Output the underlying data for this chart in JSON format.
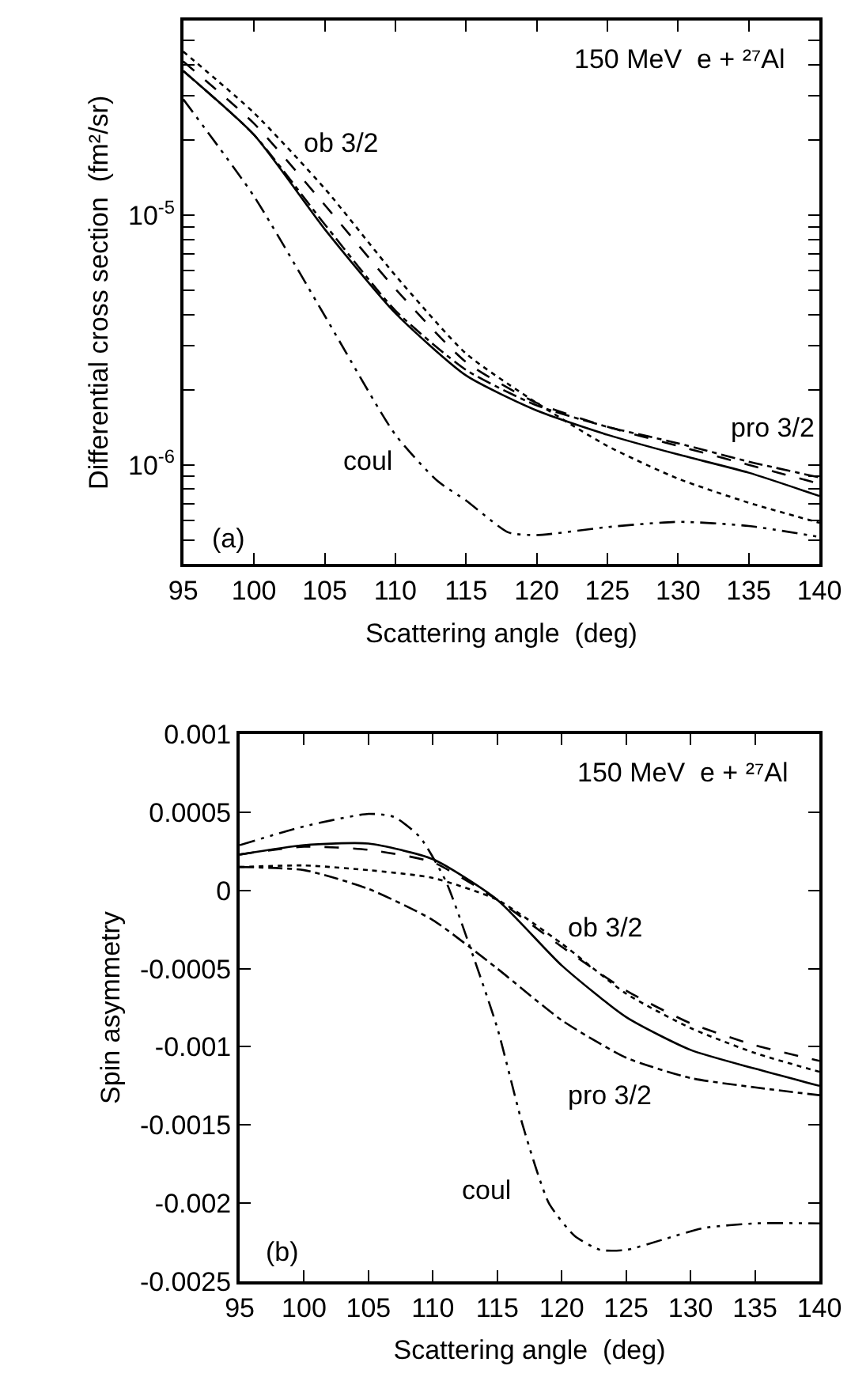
{
  "chart_data": [
    {
      "type": "line",
      "title": "150 MeV  e + ²⁷Al",
      "xlabel": "Scattering angle  (deg)",
      "ylabel": "Differential cross section  (fm²/sr)",
      "log": "y",
      "x": [
        95,
        100,
        105,
        110,
        115,
        120,
        125,
        130,
        135,
        140
      ],
      "series": [
        {
          "color": "#000000",
          "line_style": "solid",
          "values": [
            3.78e-05,
            2.1e-05,
            8.8e-06,
            4.05e-06,
            2.28e-06,
            1.65e-06,
            1.32e-06,
            1.1e-06,
            9.3e-07,
            7.5e-07
          ]
        },
        {
          "color": "#000000",
          "line_style": "dashed",
          "values": [
            4.13e-05,
            2.33e-05,
            1.1e-05,
            5.07e-06,
            2.58e-06,
            1.77e-06,
            1.42e-06,
            1.19e-06,
            1e-06,
            8.4e-07
          ]
        },
        {
          "color": "#000000",
          "line_style": "dotted",
          "values": [
            4.52e-05,
            2.57e-05,
            1.28e-05,
            5.74e-06,
            2.79e-06,
            1.77e-06,
            1.19e-06,
            8.8e-07,
            7.05e-07,
            5.86e-07
          ]
        },
        {
          "color": "#000000",
          "line_style": "dashdot",
          "values": [
            3.78e-05,
            2.1e-05,
            9.2e-06,
            4.15e-06,
            2.4e-06,
            1.73e-06,
            1.42e-06,
            1.22e-06,
            1.03e-06,
            8.9e-07
          ]
        },
        {
          "color": "#000000",
          "line_style": "dashdotdot",
          "x": [
            95,
            100,
            105,
            110,
            113,
            115,
            118,
            120,
            125,
            130,
            135,
            140
          ],
          "values": [
            2.91e-05,
            1.19e-05,
            3.96e-06,
            1.32e-06,
            8.6e-07,
            7.2e-07,
            5.36e-07,
            5.23e-07,
            5.63e-07,
            5.91e-07,
            5.69e-07,
            5.14e-07
          ]
        }
      ],
      "xlim": [
        95,
        140
      ],
      "xticks": [
        95,
        100,
        105,
        110,
        115,
        120,
        125,
        130,
        135,
        140
      ],
      "ylim": [
        4e-07,
        6e-05
      ],
      "yticks": [
        {
          "value": 5e-07,
          "label": null
        },
        {
          "value": 6e-07,
          "label": null
        },
        {
          "value": 7e-07,
          "label": null
        },
        {
          "value": 8e-07,
          "label": null
        },
        {
          "value": 9e-07,
          "label": null
        },
        {
          "value": 1e-06,
          "label": "10$^{-6}$"
        },
        {
          "value": 2e-06,
          "label": null
        },
        {
          "value": 3e-06,
          "label": null
        },
        {
          "value": 4e-06,
          "label": null
        },
        {
          "value": 5e-06,
          "label": null
        },
        {
          "value": 6e-06,
          "label": null
        },
        {
          "value": 7e-06,
          "label": null
        },
        {
          "value": 8e-06,
          "label": null
        },
        {
          "value": 9e-06,
          "label": null
        },
        {
          "value": 1e-05,
          "label": "10$^{-5}$"
        },
        {
          "value": 2e-05,
          "label": null
        },
        {
          "value": 3e-05,
          "label": null
        },
        {
          "value": 4e-05,
          "label": null
        },
        {
          "value": 5e-05,
          "label": null
        }
      ],
      "annotations": [
        "ob 3/2",
        "pro 3/2",
        "coul",
        "(a)"
      ]
    },
    {
      "type": "line",
      "title": "150 MeV  e + ²⁷Al",
      "xlabel": "Scattering angle  (deg)",
      "ylabel": "Spin asymmetry",
      "x": [
        95,
        100,
        105,
        110,
        115,
        120,
        125,
        130,
        135,
        140
      ],
      "series": [
        {
          "color": "#000000",
          "line_style": "solid",
          "values": [
            0.00023,
            0.00029,
            0.0003,
            0.0002,
            -6e-05,
            -0.00048,
            -0.00081,
            -0.00102,
            -0.00114,
            -0.00125
          ]
        },
        {
          "color": "#000000",
          "line_style": "dashed",
          "values": [
            0.00023,
            0.00028,
            0.00026,
            0.00018,
            -6e-05,
            -0.00036,
            -0.00064,
            -0.00085,
            -0.00099,
            -0.00109
          ]
        },
        {
          "color": "#000000",
          "line_style": "dotted",
          "values": [
            0.00015,
            0.00016,
            0.00013,
            8e-05,
            -6e-05,
            -0.00034,
            -0.00066,
            -0.00088,
            -0.00104,
            -0.00116
          ]
        },
        {
          "color": "#000000",
          "line_style": "dashdot",
          "values": [
            0.00015,
            0.00013,
            1e-05,
            -0.00019,
            -0.0005,
            -0.00083,
            -0.00107,
            -0.0012,
            -0.00126,
            -0.00131
          ]
        },
        {
          "color": "#000000",
          "line_style": "dashdotdot",
          "x": [
            95,
            100,
            105,
            107,
            109,
            111,
            113,
            115,
            117,
            119,
            121,
            123,
            125,
            128,
            131,
            135,
            140
          ],
          "values": [
            0.00029,
            0.00041,
            0.00049,
            0.00047,
            0.00034,
            6e-05,
            -0.00039,
            -0.00088,
            -0.00151,
            -0.002,
            -0.00221,
            -0.0023,
            -0.0023,
            -0.00223,
            -0.00216,
            -0.00213,
            -0.00213
          ]
        }
      ],
      "xlim": [
        95,
        140
      ],
      "xticks": [
        95,
        100,
        105,
        110,
        115,
        120,
        125,
        130,
        135,
        140
      ],
      "ylim": [
        -0.0025,
        0.001
      ],
      "yticks": [
        -0.0025,
        -0.002,
        -0.0015,
        -0.001,
        -0.0005,
        0,
        0.0005,
        0.001
      ],
      "annotations": [
        "ob 3/2",
        "pro 3/2",
        "coul",
        "(b)"
      ]
    }
  ]
}
